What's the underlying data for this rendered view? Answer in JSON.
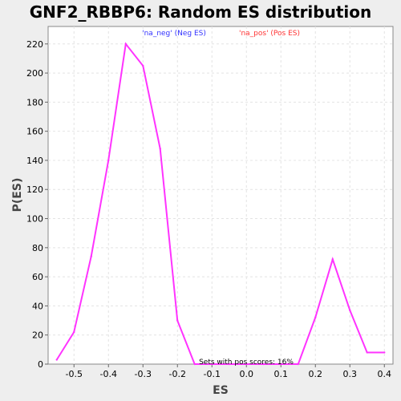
{
  "chart_data": {
    "type": "line",
    "title": "GNF2_RBBP6: Random ES distribution",
    "xlabel": "ES",
    "ylabel": "P(ES)",
    "xlim": [
      -0.575,
      0.425
    ],
    "ylim": [
      0,
      232
    ],
    "xticks": [
      -0.5,
      -0.4,
      -0.3,
      -0.2,
      -0.1,
      0.0,
      0.1,
      0.2,
      0.3,
      0.4
    ],
    "xtick_labels": [
      "-0.5",
      "-0.4",
      "-0.3",
      "-0.2",
      "-0.1",
      "0.0",
      "0.1",
      "0.2",
      "0.3",
      "0.4"
    ],
    "yticks": [
      0,
      20,
      40,
      60,
      80,
      100,
      120,
      140,
      160,
      180,
      200,
      220
    ],
    "grid": true,
    "series": [
      {
        "color": "#ff33ff",
        "x": [
          -0.55,
          -0.5,
          -0.45,
          -0.4,
          -0.35,
          -0.3,
          -0.25,
          -0.2,
          -0.15,
          -0.1,
          -0.05,
          0.0,
          0.05,
          0.1,
          0.15,
          0.2,
          0.25,
          0.3,
          0.35,
          0.4
        ],
        "y": [
          3,
          22,
          74,
          140,
          220,
          205,
          148,
          30,
          0,
          0,
          0,
          0,
          0,
          0,
          0,
          32,
          72,
          37,
          8,
          8
        ]
      }
    ],
    "legend": {
      "placement": "top",
      "entries": [
        {
          "label": "'na_neg' (Neg ES)",
          "color": "#3333ff"
        },
        {
          "label": "'na_pos' (Pos ES)",
          "color": "#ff3333"
        }
      ]
    },
    "annotation": "Sets with pos scores: 16%"
  }
}
